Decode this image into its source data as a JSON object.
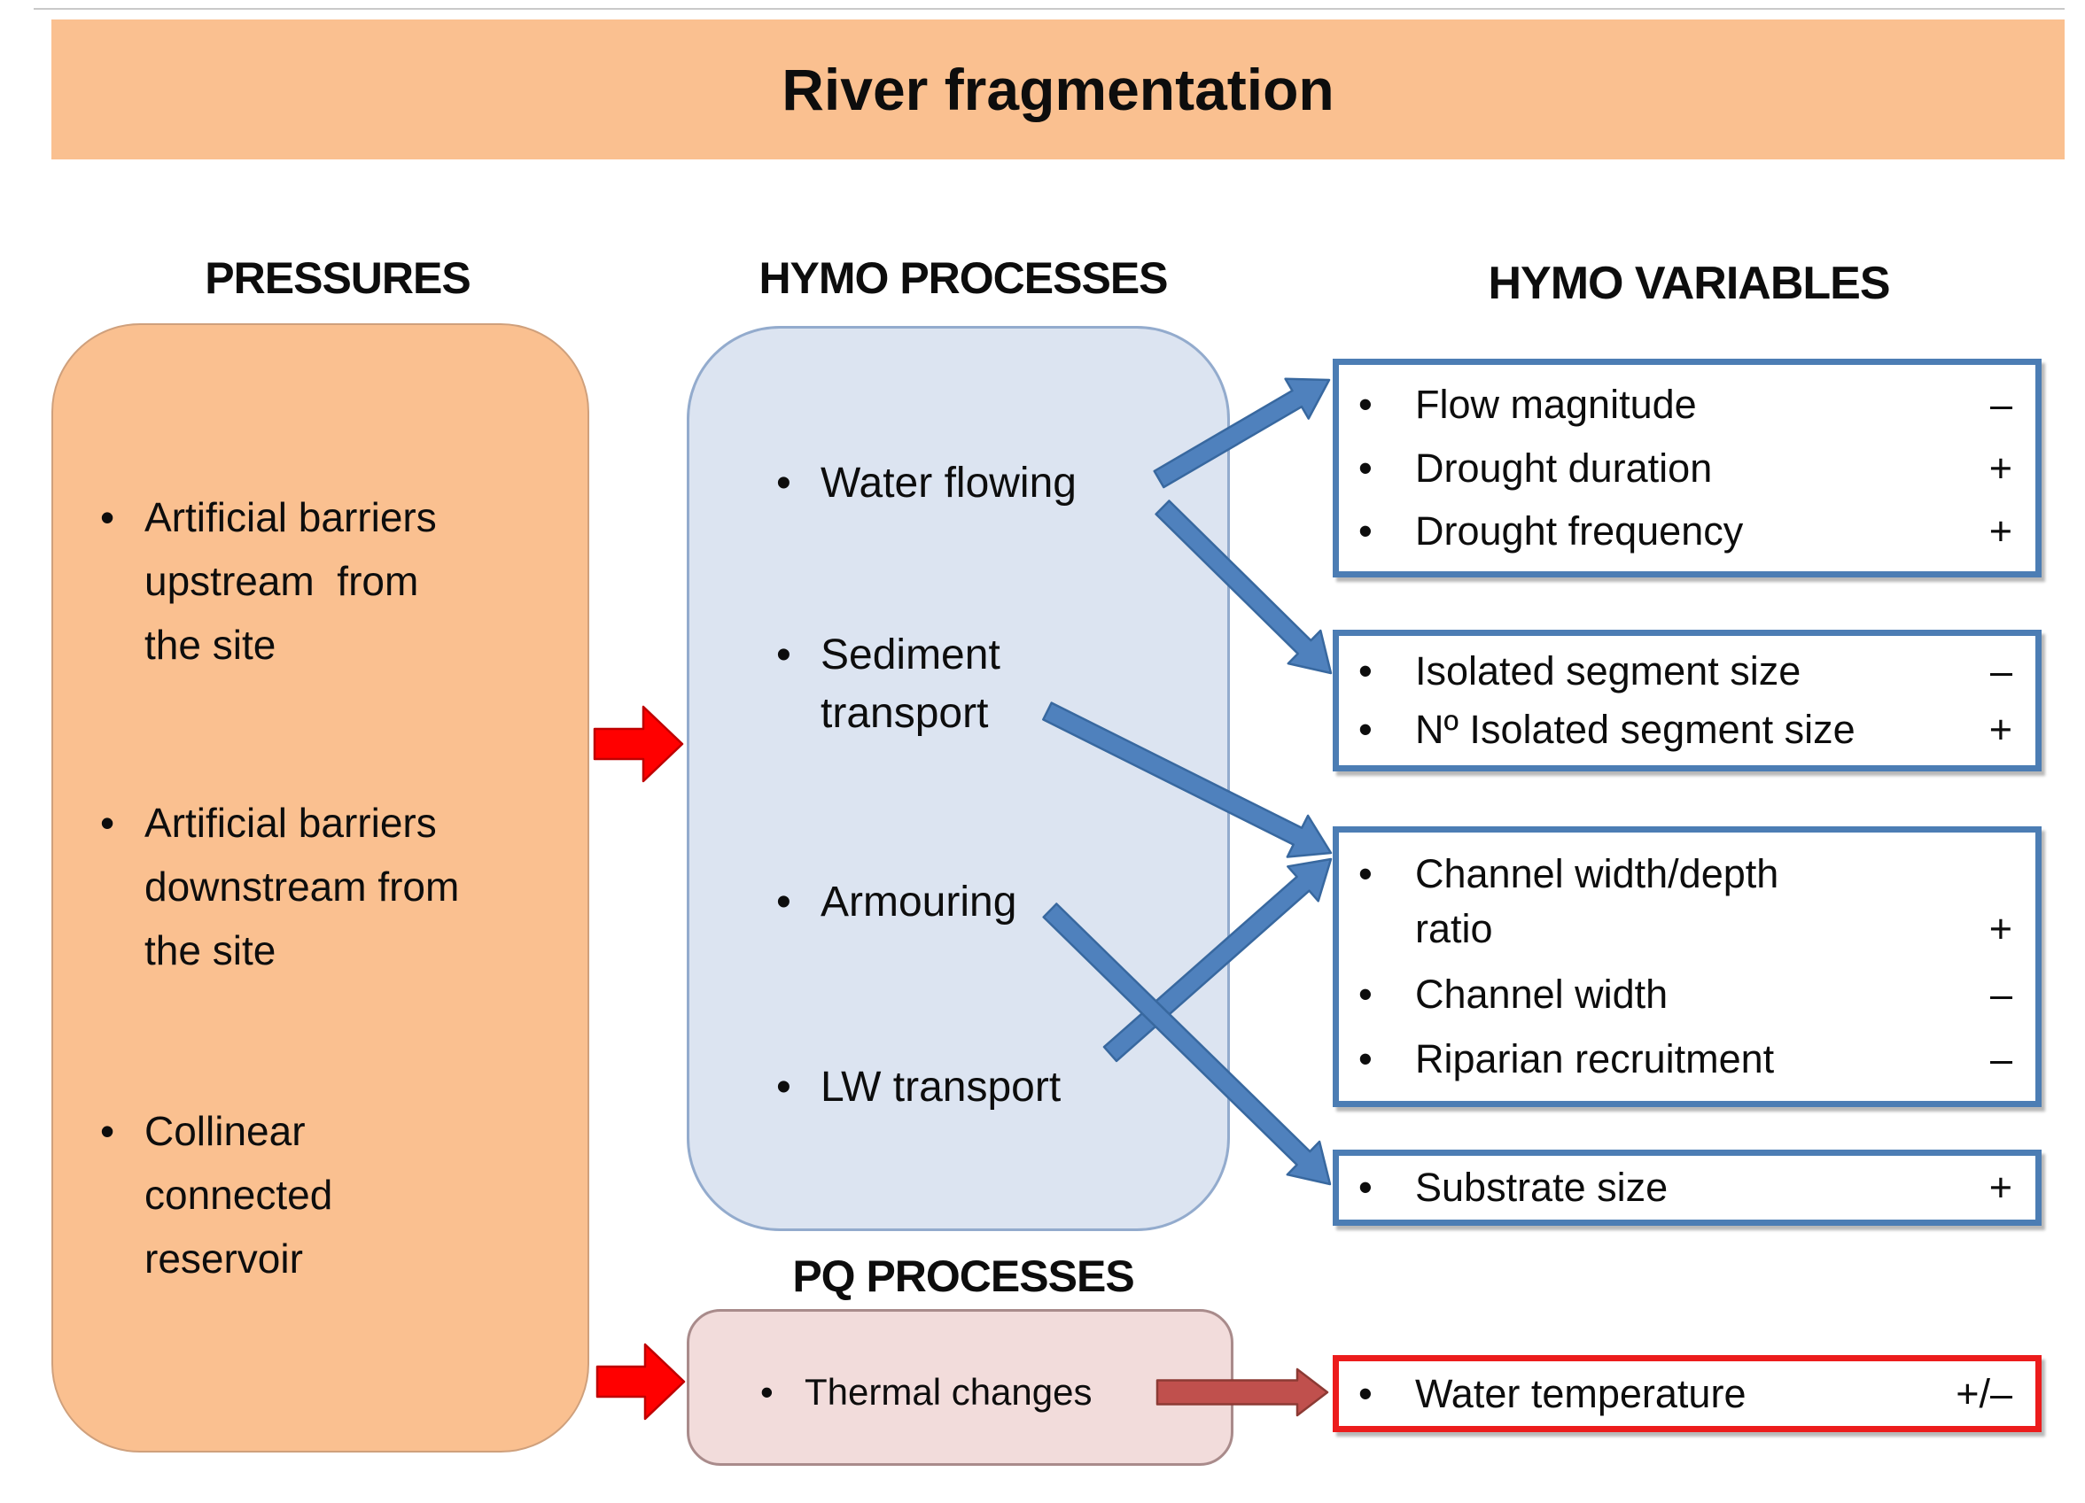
{
  "title": "River fragmentation",
  "columns": {
    "pressures": {
      "header": "PRESSURES",
      "items": [
        [
          "Artificial barriers",
          "upstream  from",
          "the site"
        ],
        [
          "Artificial barriers",
          "downstream from",
          "the site"
        ],
        [
          "Collinear",
          "connected",
          "reservoir"
        ]
      ]
    },
    "hymo_processes": {
      "header": "HYMO PROCESSES",
      "items": [
        [
          "Water flowing"
        ],
        [
          "Sediment",
          "transport"
        ],
        [
          "Armouring"
        ],
        [
          "LW transport"
        ]
      ]
    },
    "pq_processes": {
      "header": "PQ PROCESSES",
      "items": [
        [
          "Thermal changes"
        ]
      ]
    },
    "hymo_variables": {
      "header": "HYMO VARIABLES",
      "boxes": [
        {
          "items": [
            {
              "label": "Flow magnitude",
              "sign": "–"
            },
            {
              "label": "Drought duration",
              "sign": "+"
            },
            {
              "label": "Drought frequency",
              "sign": "+"
            }
          ]
        },
        {
          "items": [
            {
              "label": "Isolated segment size",
              "sign": "–"
            },
            {
              "label": "Nº Isolated segment size",
              "sign": "+"
            }
          ]
        },
        {
          "items": [
            {
              "label": [
                "Channel width/depth",
                "ratio"
              ],
              "sign": "+"
            },
            {
              "label": "Channel width",
              "sign": "–"
            },
            {
              "label": "Riparian recruitment",
              "sign": "–"
            }
          ]
        },
        {
          "items": [
            {
              "label": "Substrate size",
              "sign": "+"
            }
          ]
        }
      ],
      "water_temperature_box": {
        "items": [
          {
            "label": "Water temperature",
            "sign": "+/–"
          }
        ]
      }
    }
  },
  "colors": {
    "c_orange": "#FAC090",
    "c_orange_border": "#CFA07C",
    "c_blue_fill": "#DCE4F1",
    "c_blue_border": "#93ABCD",
    "c_accent_border": "#4C7DB4",
    "c_pink_fill": "#F2DCDB",
    "c_pink_border": "#A98B8B",
    "c_wt_border": "#EC1C1C",
    "arrow_blue": "#4F81BD",
    "arrow_blue_stroke": "#38689F",
    "arrow_red": "#FF0000",
    "arrow_red_stroke": "#BF0000",
    "arrow_dark_red": "#C0504D",
    "arrow_dark_red_stroke": "#8C3A34"
  }
}
